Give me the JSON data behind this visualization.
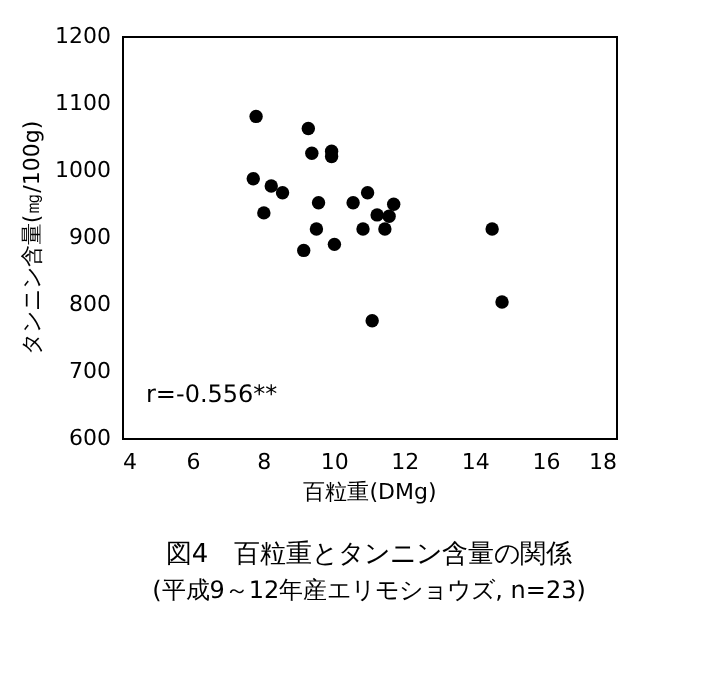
{
  "chart_data": {
    "type": "scatter",
    "title": "図4　百粒重とタンニン含量の関係",
    "subtitle": "(平成9～12年産エリモショウズ, n=23)",
    "xlabel": "百粒重(DMg)",
    "ylabel": "タンニン含量(㎎/100g)",
    "annotations": [
      "r=-0.556**"
    ],
    "x": [
      7.8,
      9.28,
      9.38,
      9.94,
      9.94,
      7.72,
      8.23,
      8.55,
      8.02,
      9.57,
      9.51,
      9.15,
      10.02,
      10.55,
      10.96,
      10.83,
      11.23,
      11.57,
      11.45,
      11.7,
      11.09,
      14.49,
      14.77
    ],
    "values": [
      1080,
      1062,
      1025,
      1028,
      1020,
      987,
      976,
      966,
      936,
      951,
      912,
      880,
      889,
      951,
      966,
      912,
      933,
      931,
      912,
      949,
      775,
      912,
      803
    ],
    "color": "#000000",
    "marker": "circle",
    "grid": false,
    "xlim": [
      4,
      18
    ],
    "xticks": [
      4,
      6,
      8,
      10,
      12,
      14,
      16,
      18
    ],
    "ylim": [
      600,
      1200
    ],
    "yticks": [
      600,
      700,
      800,
      900,
      1000,
      1100,
      1200
    ]
  }
}
